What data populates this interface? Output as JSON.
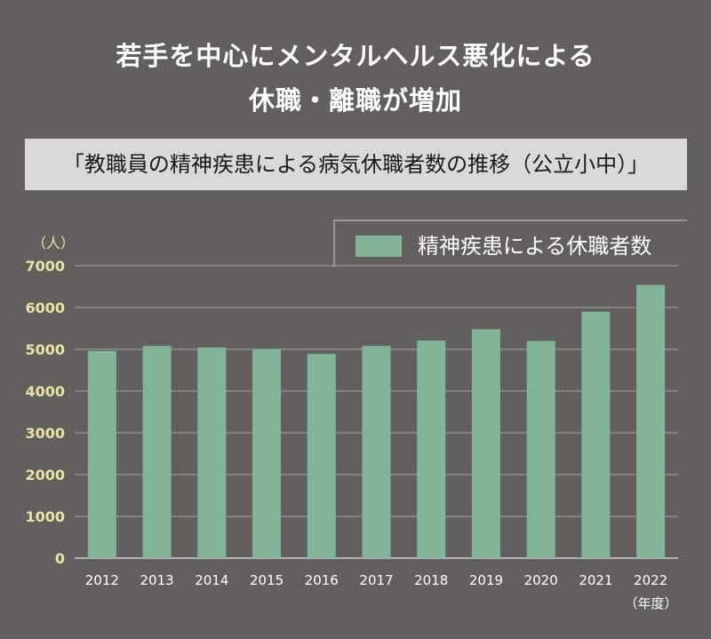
{
  "header": {
    "title_line1": "若手を中心にメンタルヘルス悪化による",
    "title_line2": "休職・離職が増加",
    "subtitle": "「教職員の精神疾患による病気休職者数の推移（公立小中）」"
  },
  "colors": {
    "background": "#625f5f",
    "bar": "#82b497",
    "tick_label": "#e9e4a2",
    "grid": "#a9a6a6"
  },
  "chart_data": {
    "type": "bar",
    "title": "「教職員の精神疾患による病気休職者数の推移（公立小中）」",
    "categories": [
      "2012",
      "2013",
      "2014",
      "2015",
      "2016",
      "2017",
      "2018",
      "2019",
      "2020",
      "2021",
      "2022"
    ],
    "series": [
      {
        "name": "精神疾患による休職者数",
        "values": [
          4960,
          5080,
          5045,
          5010,
          4890,
          5080,
          5210,
          5480,
          5200,
          5900,
          6540
        ]
      }
    ],
    "ylabel": "（人）",
    "xlabel": "（年度）",
    "ylim": [
      0,
      7000
    ],
    "yticks": [
      0,
      1000,
      2000,
      3000,
      4000,
      5000,
      6000,
      7000
    ],
    "grid": true,
    "legend_position": "top-right"
  }
}
